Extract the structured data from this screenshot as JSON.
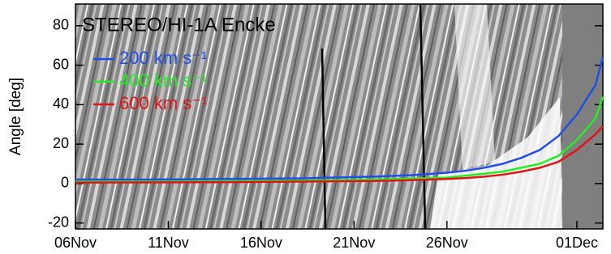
{
  "chart_data": {
    "type": "line",
    "title": "STEREO/HI-1A Encke",
    "y_label": "Angle [deg]",
    "x": [
      0,
      4,
      8,
      12,
      16,
      18,
      20,
      21,
      22,
      23,
      24,
      25,
      26,
      27,
      28,
      28.4
    ],
    "xlim": [
      0,
      28.4
    ],
    "xticks": [
      {
        "value": 0,
        "label": "06Nov"
      },
      {
        "value": 5,
        "label": "11Nov"
      },
      {
        "value": 10,
        "label": "16Nov"
      },
      {
        "value": 15,
        "label": "21Nov"
      },
      {
        "value": 20,
        "label": "26Nov"
      },
      {
        "value": 27,
        "label": "01Dec"
      }
    ],
    "ylim": [
      -23,
      91
    ],
    "yticks": [
      -20,
      0,
      20,
      40,
      60,
      80
    ],
    "series": [
      {
        "name": "200 km s⁻¹",
        "color": "#1f4fe6",
        "values": [
          2,
          2,
          2.3,
          2.6,
          3.5,
          4.2,
          5.5,
          6.5,
          8,
          10,
          13,
          17,
          24,
          35,
          50,
          64
        ]
      },
      {
        "name": "400 km s⁻¹",
        "color": "#22ee22",
        "values": [
          1,
          1,
          1.2,
          1.5,
          2,
          2.5,
          3,
          4,
          5,
          6,
          8,
          10,
          14,
          22,
          33,
          44
        ]
      },
      {
        "name": "600 km s⁻¹",
        "color": "#e01414",
        "values": [
          0.5,
          0.6,
          0.7,
          1,
          1.3,
          1.7,
          2.3,
          2.8,
          3.5,
          4.5,
          6,
          8,
          11,
          17,
          25,
          29
        ]
      }
    ]
  }
}
